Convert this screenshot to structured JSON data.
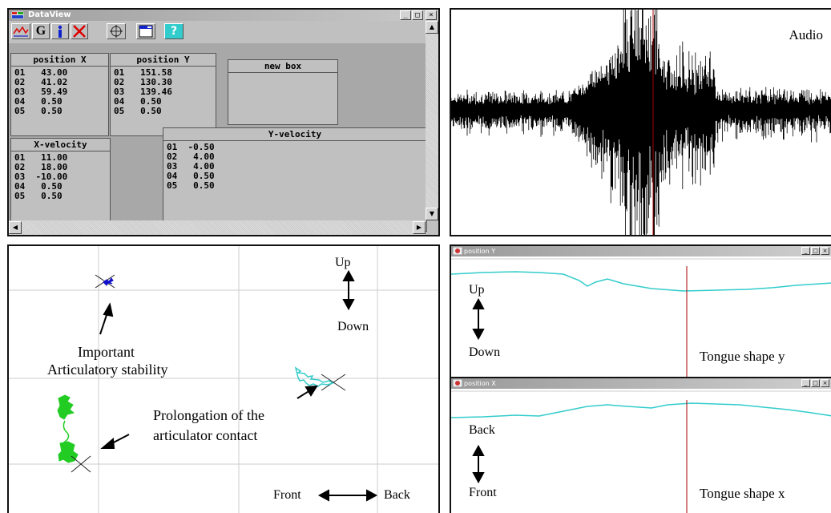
{
  "dataview": {
    "title": "DataView",
    "toolbar": [
      "graph-icon",
      "G",
      "info-icon",
      "close-x-icon",
      "move-icon",
      "window-icon",
      "help-icon"
    ],
    "toolbar_g": "G",
    "toolbar_help": "?",
    "panels": {
      "position_x": {
        "title": "position X",
        "rows": [
          [
            "01",
            "43.00"
          ],
          [
            "02",
            "41.02"
          ],
          [
            "03",
            "59.49"
          ],
          [
            "04",
            "0.50"
          ],
          [
            "05",
            "0.50"
          ]
        ]
      },
      "position_y": {
        "title": "position Y",
        "rows": [
          [
            "01",
            "151.58"
          ],
          [
            "02",
            "130.30"
          ],
          [
            "03",
            "139.46"
          ],
          [
            "04",
            "0.50"
          ],
          [
            "05",
            "0.50"
          ]
        ]
      },
      "new_box": {
        "title": "new box"
      },
      "x_velocity": {
        "title": "X-velocity",
        "rows": [
          [
            "01",
            "11.00"
          ],
          [
            "02",
            "18.00"
          ],
          [
            "03",
            "-10.00"
          ],
          [
            "04",
            "0.50"
          ],
          [
            "05",
            "0.50"
          ]
        ]
      },
      "y_velocity": {
        "title": "Y-velocity",
        "rows": [
          [
            "01",
            "-0.50"
          ],
          [
            "02",
            "4.00"
          ],
          [
            "03",
            "4.00"
          ],
          [
            "04",
            "0.50"
          ],
          [
            "05",
            "0.50"
          ]
        ]
      }
    }
  },
  "audio": {
    "label": "Audio"
  },
  "trajectory": {
    "up": "Up",
    "down": "Down",
    "front": "Front",
    "back": "Back",
    "important_line1": "Important",
    "important_line2": "Articulatory stability",
    "prolong_line1": "Prolongation of the",
    "prolong_line2": "articulator contact"
  },
  "position_y_window": {
    "title": "position Y",
    "up": "Up",
    "down": "Down",
    "caption": "Tongue shape y"
  },
  "position_x_window": {
    "title": "position X",
    "back": "Back",
    "front": "Front",
    "caption": "Tongue shape x"
  },
  "colors": {
    "cyan": "#33cccc",
    "green": "#22cc22",
    "blue": "#1010cc",
    "cursor": "#aa0000"
  }
}
